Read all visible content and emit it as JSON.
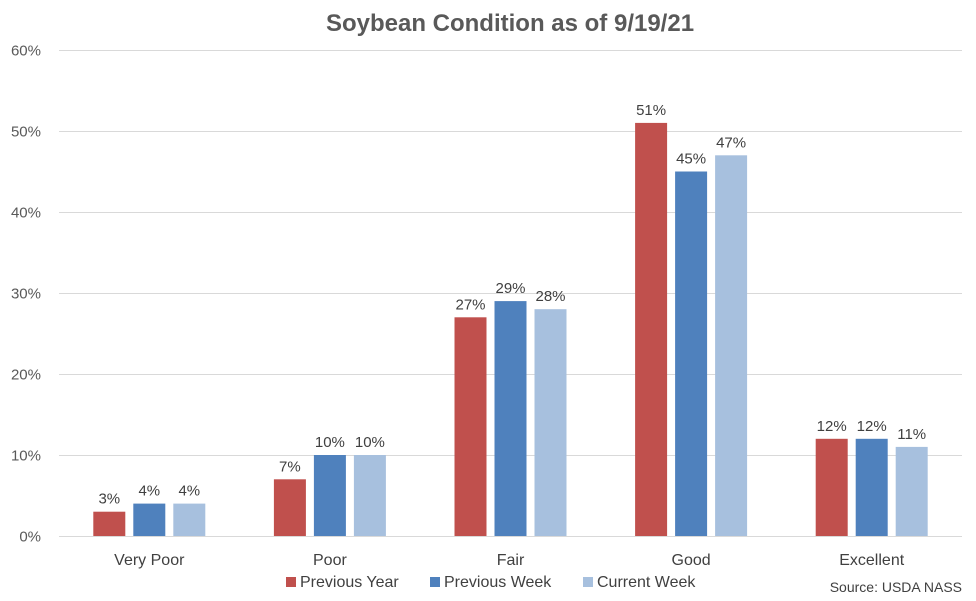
{
  "chart_data": {
    "type": "bar",
    "title": "Soybean Condition as of 9/19/21",
    "categories": [
      "Very Poor",
      "Poor",
      "Fair",
      "Good",
      "Excellent"
    ],
    "series": [
      {
        "name": "Previous Year",
        "color": "#c0504d",
        "values": [
          3,
          7,
          27,
          51,
          12
        ]
      },
      {
        "name": "Previous Week",
        "color": "#4f81bd",
        "values": [
          4,
          10,
          29,
          45,
          12
        ]
      },
      {
        "name": "Current Week",
        "color": "#a7c0de",
        "values": [
          4,
          10,
          28,
          47,
          11
        ]
      }
    ],
    "data_labels": [
      [
        "3%",
        "7%",
        "27%",
        "51%",
        "12%"
      ],
      [
        "4%",
        "10%",
        "29%",
        "45%",
        "12%"
      ],
      [
        "4%",
        "10%",
        "28%",
        "47%",
        "11%"
      ]
    ],
    "y_ticks": [
      0,
      10,
      20,
      30,
      40,
      50,
      60
    ],
    "y_tick_labels": [
      "0%",
      "10%",
      "20%",
      "30%",
      "40%",
      "50%",
      "60%"
    ],
    "ylim": [
      0,
      60
    ],
    "grid": true,
    "legend_position": "bottom",
    "source": "Source: USDA NASS"
  }
}
